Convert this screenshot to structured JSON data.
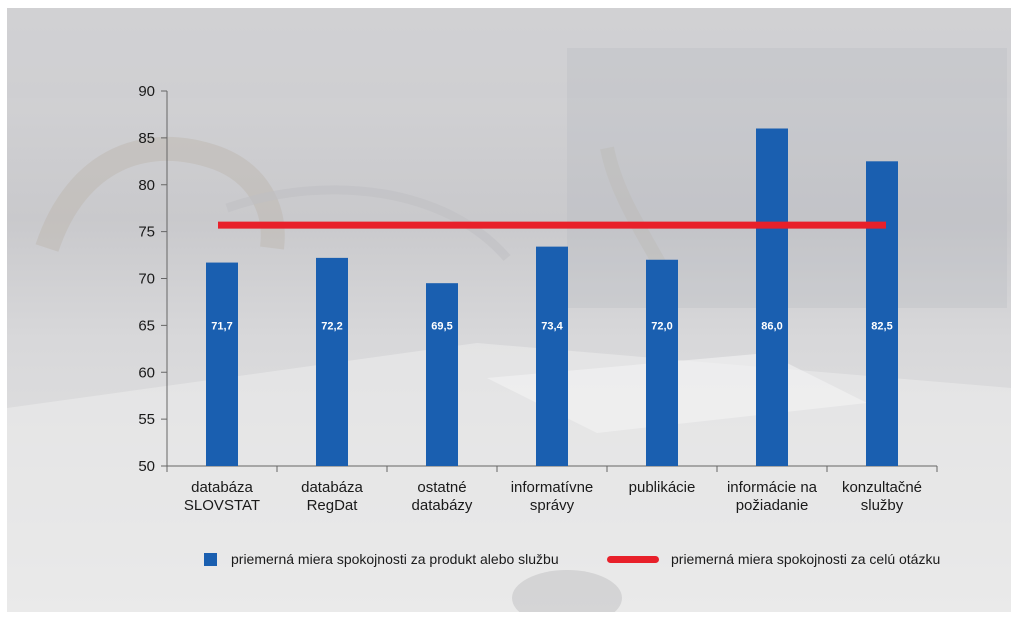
{
  "colors": {
    "bar": "#1a5fb0",
    "line": "#e8202a",
    "axis": "#666666",
    "text": "#1a1a1a",
    "data_label": "#ffffff"
  },
  "chart_data": {
    "type": "bar",
    "categories": [
      [
        "databáza",
        "SLOVSTAT"
      ],
      [
        "databáza",
        "RegDat"
      ],
      [
        "ostatné",
        "databázy"
      ],
      [
        "informatívne",
        "správy"
      ],
      [
        "publikácie"
      ],
      [
        "informácie na",
        "požiadanie"
      ],
      [
        "konzultačné",
        "služby"
      ]
    ],
    "series": [
      {
        "name": "priemerná miera spokojnosti za produkt alebo službu",
        "type": "bar",
        "values": [
          71.7,
          72.2,
          69.5,
          73.4,
          72.0,
          86.0,
          82.5
        ],
        "labels": [
          "71,7",
          "72,2",
          "69,5",
          "73,4",
          "72,0",
          "86,0",
          "82,5"
        ]
      },
      {
        "name": "priemerná miera spokojnosti za celú otázku",
        "type": "line",
        "value": 75.7
      }
    ],
    "y_ticks": [
      "50",
      "55",
      "60",
      "65",
      "70",
      "75",
      "80",
      "85",
      "90"
    ],
    "ylim": [
      50,
      90
    ],
    "legend_position": "bottom",
    "grid": false
  }
}
